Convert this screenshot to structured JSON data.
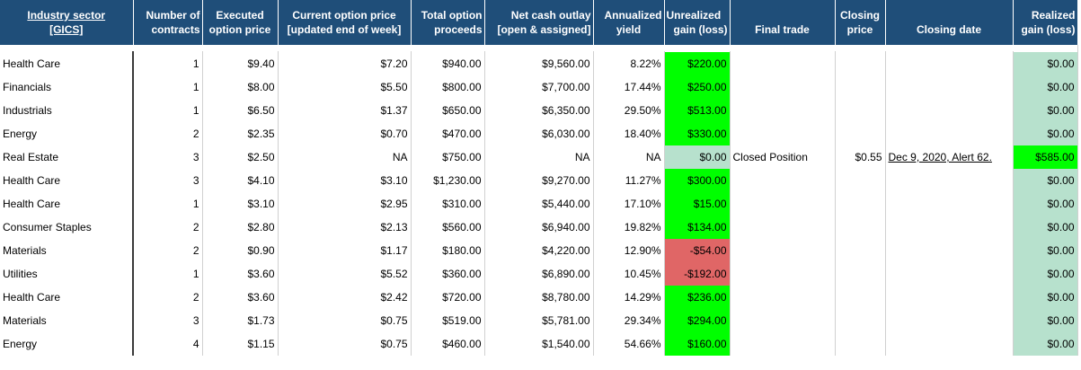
{
  "headers": {
    "sector_line1": "Industry sector",
    "sector_line2": "[GICS]",
    "contracts_line1": "Number of",
    "contracts_line2": "contracts",
    "executed_line1": "Executed",
    "executed_line2": "option price",
    "current_line1": "Current option price",
    "current_line2": "[updated end of week]",
    "total_line1": "Total option",
    "total_line2": "proceeds",
    "net_line1": "Net cash outlay",
    "net_line2": "[open & assigned]",
    "annual_line1": "Annualized",
    "annual_line2": "yield",
    "unreal_line1": "Unrealized",
    "unreal_line2": "gain (loss)",
    "final": "Final trade",
    "closing_price_line1": "Closing",
    "closing_price_line2": "price",
    "closing_date": "Closing date",
    "realized_line1": "Realized",
    "realized_line2": "gain (loss)"
  },
  "rows": [
    {
      "sector": "Health Care",
      "contracts": "1",
      "executed": "$9.40",
      "current": "$7.20",
      "total": "$940.00",
      "net": "$9,560.00",
      "annual": "8.22%",
      "unrealized": "$220.00",
      "final": "",
      "closing_price": "",
      "closing_date": "",
      "realized": "$0.00"
    },
    {
      "sector": "Financials",
      "contracts": "1",
      "executed": "$8.00",
      "current": "$5.50",
      "total": "$800.00",
      "net": "$7,700.00",
      "annual": "17.44%",
      "unrealized": "$250.00",
      "final": "",
      "closing_price": "",
      "closing_date": "",
      "realized": "$0.00"
    },
    {
      "sector": "Industrials",
      "contracts": "1",
      "executed": "$6.50",
      "current": "$1.37",
      "total": "$650.00",
      "net": "$6,350.00",
      "annual": "29.50%",
      "unrealized": "$513.00",
      "final": "",
      "closing_price": "",
      "closing_date": "",
      "realized": "$0.00"
    },
    {
      "sector": "Energy",
      "contracts": "2",
      "executed": "$2.35",
      "current": "$0.70",
      "total": "$470.00",
      "net": "$6,030.00",
      "annual": "18.40%",
      "unrealized": "$330.00",
      "final": "",
      "closing_price": "",
      "closing_date": "",
      "realized": "$0.00"
    },
    {
      "sector": "Real Estate",
      "contracts": "3",
      "executed": "$2.50",
      "current": "NA",
      "total": "$750.00",
      "net": "NA",
      "annual": "NA",
      "unrealized": "$0.00",
      "final": "Closed Position",
      "closing_price": "$0.55",
      "closing_date": "Dec 9, 2020, Alert 62.",
      "realized": "$585.00"
    },
    {
      "sector": "Health Care",
      "contracts": "3",
      "executed": "$4.10",
      "current": "$3.10",
      "total": "$1,230.00",
      "net": "$9,270.00",
      "annual": "11.27%",
      "unrealized": "$300.00",
      "final": "",
      "closing_price": "",
      "closing_date": "",
      "realized": "$0.00"
    },
    {
      "sector": "Health Care",
      "contracts": "1",
      "executed": "$3.10",
      "current": "$2.95",
      "total": "$310.00",
      "net": "$5,440.00",
      "annual": "17.10%",
      "unrealized": "$15.00",
      "final": "",
      "closing_price": "",
      "closing_date": "",
      "realized": "$0.00"
    },
    {
      "sector": "Consumer Staples",
      "contracts": "2",
      "executed": "$2.80",
      "current": "$2.13",
      "total": "$560.00",
      "net": "$6,940.00",
      "annual": "19.82%",
      "unrealized": "$134.00",
      "final": "",
      "closing_price": "",
      "closing_date": "",
      "realized": "$0.00"
    },
    {
      "sector": "Materials",
      "contracts": "2",
      "executed": "$0.90",
      "current": "$1.17",
      "total": "$180.00",
      "net": "$4,220.00",
      "annual": "12.90%",
      "unrealized": "-$54.00",
      "final": "",
      "closing_price": "",
      "closing_date": "",
      "realized": "$0.00"
    },
    {
      "sector": "Utilities",
      "contracts": "1",
      "executed": "$3.60",
      "current": "$5.52",
      "total": "$360.00",
      "net": "$6,890.00",
      "annual": "10.45%",
      "unrealized": "-$192.00",
      "final": "",
      "closing_price": "",
      "closing_date": "",
      "realized": "$0.00"
    },
    {
      "sector": "Health Care",
      "contracts": "2",
      "executed": "$3.60",
      "current": "$2.42",
      "total": "$720.00",
      "net": "$8,780.00",
      "annual": "14.29%",
      "unrealized": "$236.00",
      "final": "",
      "closing_price": "",
      "closing_date": "",
      "realized": "$0.00"
    },
    {
      "sector": "Materials",
      "contracts": "3",
      "executed": "$1.73",
      "current": "$0.75",
      "total": "$519.00",
      "net": "$5,781.00",
      "annual": "29.34%",
      "unrealized": "$294.00",
      "final": "",
      "closing_price": "",
      "closing_date": "",
      "realized": "$0.00"
    },
    {
      "sector": "Energy",
      "contracts": "4",
      "executed": "$1.15",
      "current": "$0.75",
      "total": "$460.00",
      "net": "$1,540.00",
      "annual": "54.66%",
      "unrealized": "$160.00",
      "final": "",
      "closing_price": "",
      "closing_date": "",
      "realized": "$0.00"
    }
  ],
  "colors": {
    "header_bg": "#1f4e79",
    "gain_green": "#00ff00",
    "loss_red": "#e06666",
    "neutral_green": "#b7e1cd"
  }
}
